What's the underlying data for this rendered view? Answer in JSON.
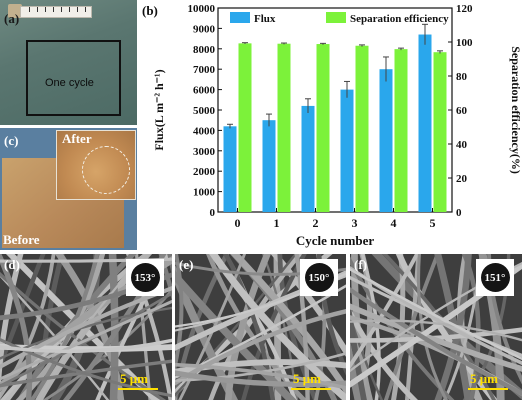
{
  "panels": {
    "a": {
      "label": "(a)",
      "box_caption": "One cycle"
    },
    "b": {
      "label": "(b)"
    },
    "c": {
      "label": "(c)",
      "after": "After",
      "before": "Before"
    },
    "d": {
      "label": "(d)",
      "contact_angle": "153°",
      "scale": "5 μm"
    },
    "e": {
      "label": "(e)",
      "contact_angle": "150°",
      "scale": "5 μm"
    },
    "f": {
      "label": "(f)",
      "contact_angle": "151°",
      "scale": "5 μm"
    }
  },
  "colors": {
    "flux": "#2aa7ec",
    "efficiency": "#7cf23a",
    "scalebar": "#ffe000"
  },
  "chart_data": {
    "type": "bar",
    "categories": [
      "0",
      "1",
      "2",
      "3",
      "4",
      "5"
    ],
    "xlabel": "Cycle number",
    "ylabel": "Flux(L m⁻² h⁻¹)",
    "y2label": "Separation efficiency(%)",
    "ylim": [
      0,
      10000
    ],
    "y2lim": [
      0,
      120
    ],
    "yticks": [
      "0",
      "1000",
      "2000",
      "3000",
      "4000",
      "5000",
      "6000",
      "7000",
      "8000",
      "9000",
      "10000"
    ],
    "y2ticks": [
      "0",
      "20",
      "40",
      "60",
      "80",
      "100",
      "120"
    ],
    "legend_position": "top",
    "series": [
      {
        "name": "Flux",
        "axis": "left",
        "values": [
          4200,
          4500,
          5200,
          6000,
          7000,
          8700
        ],
        "errors": [
          100,
          300,
          350,
          400,
          600,
          500
        ]
      },
      {
        "name": "Separation efficiency",
        "axis": "right",
        "values": [
          99.2,
          99.0,
          98.8,
          97.8,
          95.8,
          94.0
        ],
        "errors": [
          0.4,
          0.4,
          0.4,
          0.5,
          0.6,
          0.8
        ]
      }
    ]
  }
}
